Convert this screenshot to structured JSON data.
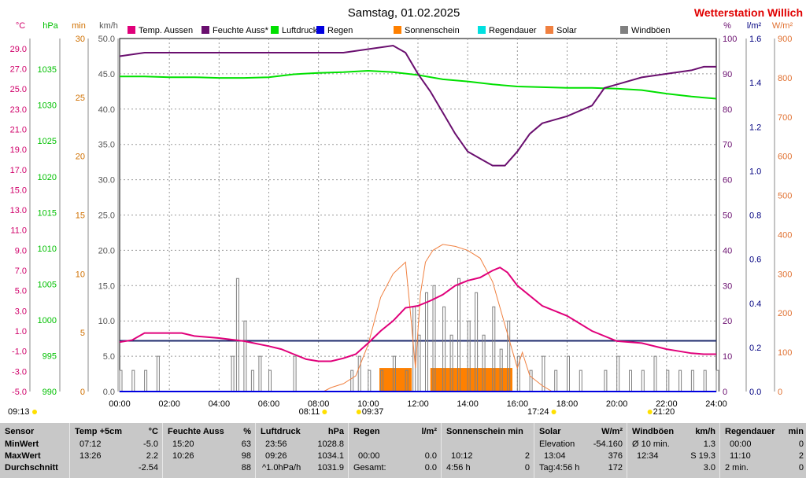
{
  "header": {
    "title": "Samstag, 01.02.2025",
    "station": "Wetterstation Willich"
  },
  "axis_units": {
    "temp": "°C",
    "pressure": "hPa",
    "minutes": "min",
    "wind": "km/h",
    "humidity": "%",
    "rain": "l/m²",
    "solar": "W/m²"
  },
  "legend": [
    {
      "label": "Temp. Aussen",
      "color": "#e0007a"
    },
    {
      "label": "Feuchte Auss*",
      "color": "#6a0f6f"
    },
    {
      "label": "Luftdruck",
      "color": "#00e000"
    },
    {
      "label": "Regen",
      "color": "#0000e0"
    },
    {
      "label": "Sonnenschein",
      "color": "#ff8000"
    },
    {
      "label": "Regendauer",
      "color": "#00e0e0"
    },
    {
      "label": "Solar",
      "color": "#f08040"
    },
    {
      "label": "Windböen",
      "color": "#808080"
    }
  ],
  "time_marks": {
    "start": "09:13",
    "sunrise": "08:11",
    "sun_start": "09:37",
    "sunset": "17:24",
    "end": "21:20"
  },
  "chart_data": {
    "type": "line",
    "title": "Samstag, 01.02.2025",
    "x_ticks": [
      "00:00",
      "02:00",
      "04:00",
      "06:00",
      "08:00",
      "10:00",
      "12:00",
      "14:00",
      "16:00",
      "18:00",
      "20:00",
      "22:00",
      "24:00"
    ],
    "axes": {
      "temp": {
        "unit": "°C",
        "range": [
          -5,
          30
        ],
        "ticks": [
          "29.0",
          "27.0",
          "25.0",
          "23.0",
          "21.0",
          "19.0",
          "17.0",
          "15.0",
          "13.0",
          "11.0",
          "9.0",
          "7.0",
          "5.0",
          "3.0",
          "1.0",
          "-1.0",
          "-3.0",
          "-5.0"
        ]
      },
      "pressure": {
        "unit": "hPa",
        "range": [
          990,
          1039.3
        ],
        "ticks": [
          "1035",
          "1030",
          "1025",
          "1020",
          "1015",
          "1010",
          "1005",
          "1000",
          "995",
          "990"
        ]
      },
      "minutes": {
        "unit": "min",
        "range": [
          0,
          30
        ],
        "ticks": [
          "30",
          "25",
          "20",
          "15",
          "10",
          "5",
          "0"
        ]
      },
      "wind": {
        "unit": "km/h",
        "range": [
          0,
          50
        ],
        "ticks": [
          "50.0",
          "45.0",
          "40.0",
          "35.0",
          "30.0",
          "25.0",
          "20.0",
          "15.0",
          "10.0",
          "5.0",
          "0.0"
        ]
      },
      "humidity": {
        "unit": "%",
        "range": [
          0,
          100
        ],
        "ticks": [
          "100",
          "90",
          "80",
          "70",
          "60",
          "50",
          "40",
          "30",
          "20",
          "10",
          "0"
        ]
      },
      "rain": {
        "unit": "l/m²",
        "range": [
          0,
          1.6
        ],
        "ticks": [
          "1.6",
          "1.4",
          "1.2",
          "1.0",
          "0.8",
          "0.6",
          "0.4",
          "0.2",
          "0.0"
        ]
      },
      "solar": {
        "unit": "W/m²",
        "range": [
          0,
          900
        ],
        "ticks": [
          "900",
          "800",
          "700",
          "600",
          "500",
          "400",
          "300",
          "200",
          "100",
          "0"
        ]
      }
    },
    "series": [
      {
        "name": "Temp. Aussen",
        "axis": "temp",
        "color": "#e0007a",
        "x": [
          0,
          0.5,
          1,
          2,
          2.5,
          3,
          4,
          5,
          6,
          6.5,
          7,
          7.5,
          8,
          8.5,
          9,
          9.5,
          10,
          10.5,
          11,
          11.5,
          12,
          12.5,
          13,
          13.5,
          14,
          14.5,
          15,
          15.3,
          15.6,
          16,
          17,
          18,
          19,
          20,
          21,
          22,
          22.5,
          23,
          23.5,
          24
        ],
        "y": [
          -0.1,
          0.1,
          0.8,
          0.8,
          0.8,
          0.5,
          0.3,
          0.0,
          -0.5,
          -0.8,
          -1.3,
          -1.8,
          -2.0,
          -2.0,
          -1.7,
          -1.3,
          -0.2,
          1.0,
          2.0,
          3.3,
          3.5,
          4.0,
          4.6,
          5.5,
          6.0,
          6.3,
          7.0,
          7.3,
          6.8,
          5.5,
          3.5,
          2.5,
          1.0,
          0.0,
          -0.2,
          -0.8,
          -1.0,
          -1.2,
          -1.3,
          -1.3
        ]
      },
      {
        "name": "Feuchte Auss*",
        "axis": "humidity",
        "color": "#6a0f6f",
        "x": [
          0,
          1,
          2,
          3,
          4,
          5,
          6,
          7,
          8,
          9,
          10,
          11,
          11.5,
          12,
          12.5,
          13,
          13.5,
          14,
          14.5,
          15,
          15.5,
          16,
          16.5,
          17,
          17.5,
          18,
          19,
          19.5,
          20,
          21,
          22,
          23,
          23.5,
          24
        ],
        "y": [
          95,
          96,
          96,
          96,
          96,
          96,
          96,
          96,
          96,
          96,
          97,
          98,
          96,
          90,
          85,
          79,
          73,
          68,
          66,
          64,
          64,
          68,
          73,
          76,
          77,
          78,
          81,
          86,
          87,
          89,
          90,
          91,
          92,
          92
        ]
      },
      {
        "name": "Luftdruck",
        "axis": "pressure",
        "color": "#00e000",
        "x": [
          0,
          1,
          2,
          3,
          4,
          5,
          6,
          7,
          8,
          9,
          10,
          11,
          12,
          13,
          14,
          15,
          16,
          17,
          18,
          19,
          20,
          21,
          22,
          23,
          24
        ],
        "y": [
          1034.0,
          1034.0,
          1033.9,
          1033.9,
          1033.8,
          1033.8,
          1033.9,
          1034.3,
          1034.5,
          1034.6,
          1034.8,
          1034.6,
          1034.2,
          1033.6,
          1033.3,
          1032.9,
          1032.6,
          1032.5,
          1032.4,
          1032.4,
          1032.3,
          1032.1,
          1031.6,
          1031.2,
          1030.9
        ]
      },
      {
        "name": "Regen",
        "axis": "rain",
        "color": "#0000e0",
        "x": [
          0,
          24
        ],
        "y": [
          0,
          0
        ]
      },
      {
        "name": "Solar",
        "axis": "solar",
        "color": "#f08040",
        "x": [
          8.2,
          8.5,
          9,
          9.5,
          10,
          10.5,
          11,
          11.5,
          11.7,
          11.9,
          12.1,
          12.3,
          12.6,
          13,
          13.5,
          14,
          14.5,
          15,
          15.5,
          16,
          16.2,
          16.5,
          17,
          17.4
        ],
        "y": [
          0,
          10,
          20,
          40,
          120,
          240,
          300,
          330,
          200,
          60,
          250,
          330,
          360,
          375,
          370,
          360,
          340,
          280,
          170,
          60,
          100,
          40,
          15,
          0
        ]
      },
      {
        "name": "Windböen",
        "axis": "wind",
        "color": "#808080",
        "x": [
          0,
          0.5,
          1,
          1.5,
          2,
          2.5,
          3,
          3.5,
          4,
          4.5,
          4.7,
          5,
          5.3,
          5.6,
          6,
          6.5,
          7,
          7.5,
          8,
          8.5,
          9,
          9.3,
          9.6,
          10,
          10.5,
          11,
          11.5,
          11.8,
          12,
          12.3,
          12.6,
          13,
          13.3,
          13.6,
          14,
          14.3,
          14.6,
          15,
          15.3,
          15.6,
          16,
          16.5,
          17,
          17.5,
          18,
          18.5,
          19,
          19.5,
          20,
          20.5,
          21,
          21.5,
          22,
          22.5,
          23,
          23.5,
          24
        ],
        "y": [
          3,
          3,
          3,
          5,
          0,
          0,
          0,
          0,
          0,
          5,
          16,
          10,
          3,
          5,
          3,
          0,
          5,
          0,
          0,
          0,
          0,
          3,
          5,
          3,
          3,
          5,
          3,
          12,
          8,
          14,
          15,
          12,
          8,
          16,
          10,
          14,
          8,
          12,
          6,
          10,
          5,
          3,
          5,
          3,
          5,
          3,
          0,
          3,
          5,
          3,
          3,
          5,
          3,
          3,
          3,
          3,
          3
        ]
      }
    ],
    "constant_line": {
      "name": "blue level",
      "axis": "rain",
      "value": 0.23,
      "color": "#1e2a6e"
    },
    "sunshine_bars": [
      {
        "start": 10.45,
        "end": 11.75,
        "minutes": 2
      },
      {
        "start": 12.5,
        "end": 15.8,
        "minutes": 2
      }
    ]
  },
  "summary": {
    "sensor": {
      "header": "Sensor",
      "rows": [
        "MinWert",
        "MaxWert",
        "Durchschnitt"
      ]
    },
    "temp": {
      "header": "Temp +5cm",
      "unit": "°C",
      "rows": [
        [
          "07:12",
          "-5.0"
        ],
        [
          "13:26",
          "2.2"
        ],
        [
          "",
          "-2.54"
        ]
      ]
    },
    "humidity": {
      "header": "Feuchte Auss",
      "unit": "%",
      "rows": [
        [
          "15:20",
          "63"
        ],
        [
          "10:26",
          "98"
        ],
        [
          "",
          "88"
        ]
      ]
    },
    "pressure": {
      "header": "Luftdruck",
      "unit": "hPa",
      "rows": [
        [
          "23:56",
          "1028.8"
        ],
        [
          "09:26",
          "1034.1"
        ],
        [
          "^1.0hPa/h",
          "1031.9"
        ]
      ]
    },
    "rain": {
      "header": "Regen",
      "unit": "l/m²",
      "rows": [
        [
          "",
          ""
        ],
        [
          "00:00",
          "0.0"
        ],
        [
          "Gesamt:",
          "0.0"
        ]
      ]
    },
    "sunshine": {
      "header": "Sonnenschein min",
      "unit": "",
      "rows": [
        [
          "",
          ""
        ],
        [
          "10:12",
          "2"
        ],
        [
          "4:56 h",
          "0"
        ]
      ]
    },
    "solar": {
      "header": "Solar",
      "unit": "W/m²",
      "rows": [
        [
          "Elevation",
          "-54.160"
        ],
        [
          "13:04",
          "376"
        ],
        [
          "Tag:4:56 h",
          "172"
        ]
      ]
    },
    "wind": {
      "header": "Windböen",
      "unit": "km/h",
      "rows": [
        [
          "Ø 10 min.",
          "1.3"
        ],
        [
          "12:34",
          "S 19.3"
        ],
        [
          "",
          "3.0"
        ]
      ]
    },
    "raindur": {
      "header": "Regendauer",
      "unit": "min",
      "rows": [
        [
          "00:00",
          "0"
        ],
        [
          "11:10",
          "2"
        ],
        [
          "2 min.",
          "0"
        ]
      ]
    }
  }
}
